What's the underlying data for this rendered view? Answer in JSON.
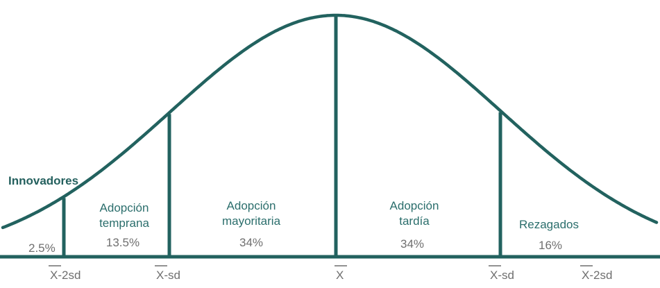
{
  "colors": {
    "curve": "#22625f",
    "label": "#2b6e6c",
    "percent": "#6f6f6f"
  },
  "segments": [
    {
      "name": "Innovadores",
      "percent": "2.5%"
    },
    {
      "name_line1": "Adopción",
      "name_line2": "temprana",
      "percent": "13.5%"
    },
    {
      "name_line1": "Adopción",
      "name_line2": "mayoritaria",
      "percent": "34%"
    },
    {
      "name_line1": "Adopción",
      "name_line2": "tardía",
      "percent": "34%"
    },
    {
      "name": "Rezagados",
      "percent": "16%"
    }
  ],
  "axis_ticks": [
    {
      "bar": "X",
      "suffix": "-2sd"
    },
    {
      "bar": "X",
      "suffix": "-sd"
    },
    {
      "bar": "X",
      "suffix": ""
    },
    {
      "bar": "X",
      "suffix": "-sd"
    },
    {
      "bar": "X",
      "suffix": "-2sd"
    }
  ]
}
